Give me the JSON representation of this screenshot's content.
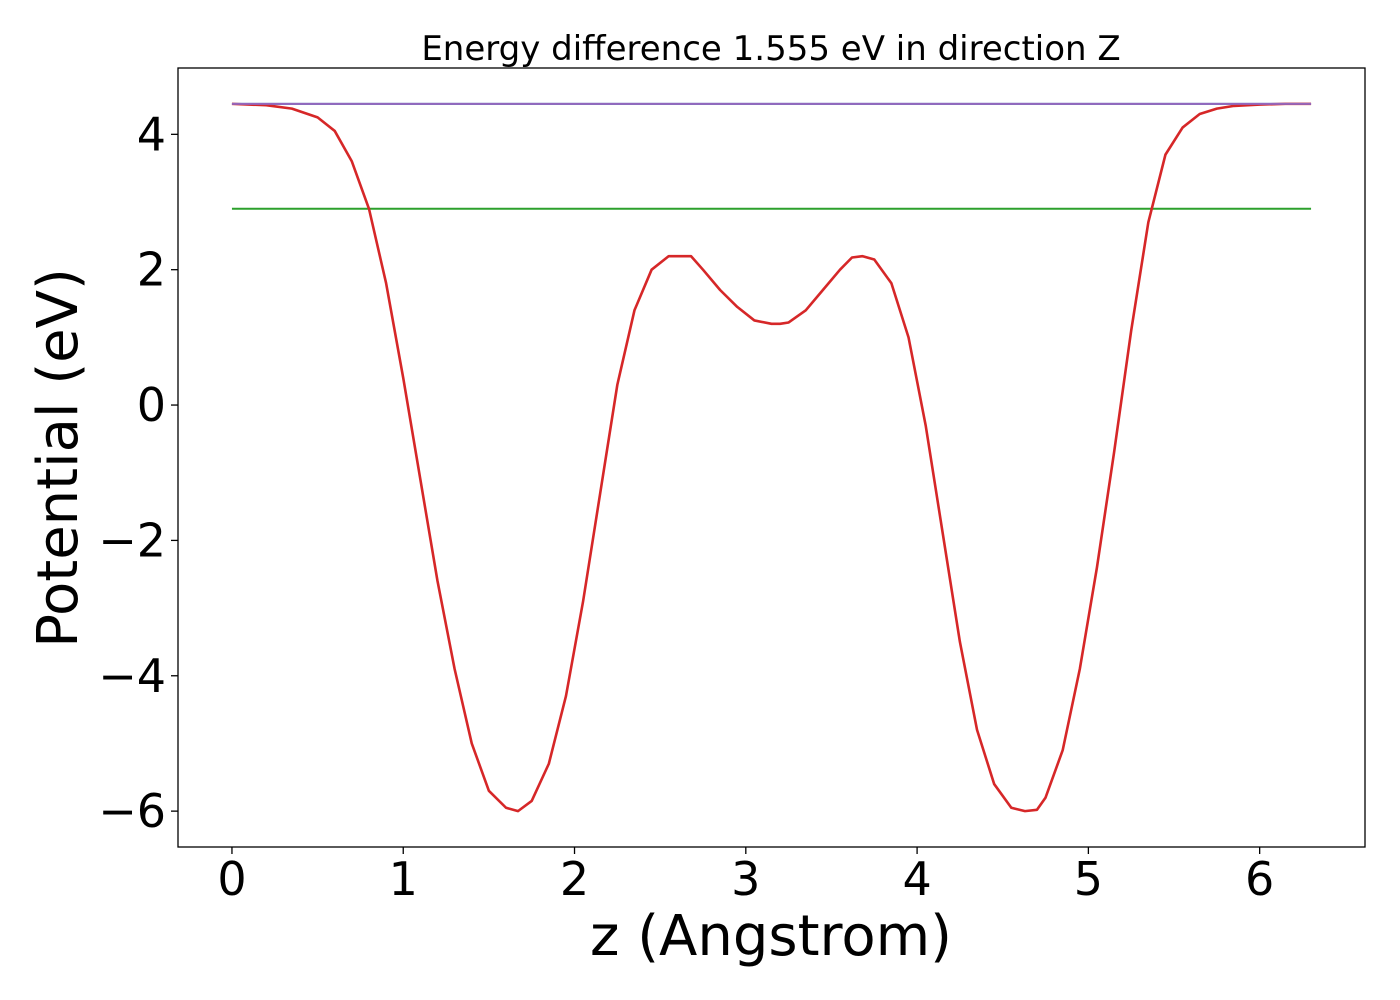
{
  "chart_data": {
    "type": "line",
    "title": "Energy difference 1.555 eV in direction Z",
    "xlabel": "z (Angstrom)",
    "ylabel": "Potential (eV)",
    "xlim": [
      -0.315,
      6.615
    ],
    "ylim": [
      -6.53,
      4.98
    ],
    "grid": false,
    "legend": "none",
    "x_ticks": [
      0,
      1,
      2,
      3,
      4,
      5,
      6
    ],
    "x_tick_labels": [
      "0",
      "1",
      "2",
      "3",
      "4",
      "5",
      "6"
    ],
    "y_ticks": [
      -6,
      -4,
      -2,
      0,
      2,
      4
    ],
    "y_tick_labels": [
      "−6",
      "−4",
      "−2",
      "0",
      "2",
      "4"
    ],
    "series": [
      {
        "color": "#1f77b4",
        "x": [
          0,
          6.3
        ],
        "y": [
          4.45,
          4.45
        ]
      },
      {
        "color": "#2ca02c",
        "x": [
          0,
          6.3
        ],
        "y": [
          2.9,
          2.9
        ]
      },
      {
        "color": "#d62728",
        "x": [
          0,
          0.2,
          0.35,
          0.5,
          0.6,
          0.7,
          0.8,
          0.9,
          1.0,
          1.1,
          1.2,
          1.3,
          1.4,
          1.5,
          1.6,
          1.67,
          1.75,
          1.85,
          1.95,
          2.05,
          2.15,
          2.25,
          2.35,
          2.45,
          2.55,
          2.62,
          2.68,
          2.75,
          2.85,
          2.95,
          3.05,
          3.15,
          3.2,
          3.25,
          3.35,
          3.45,
          3.55,
          3.62,
          3.68,
          3.75,
          3.85,
          3.95,
          4.05,
          4.15,
          4.25,
          4.35,
          4.45,
          4.55,
          4.63,
          4.7,
          4.75,
          4.85,
          4.95,
          5.05,
          5.15,
          5.25,
          5.35,
          5.45,
          5.55,
          5.65,
          5.75,
          5.85,
          6.0,
          6.15,
          6.3
        ],
        "y": [
          4.45,
          4.43,
          4.38,
          4.25,
          4.05,
          3.6,
          2.9,
          1.8,
          0.4,
          -1.1,
          -2.6,
          -3.9,
          -5.0,
          -5.7,
          -5.95,
          -6.0,
          -5.85,
          -5.3,
          -4.3,
          -2.9,
          -1.3,
          0.3,
          1.4,
          2.0,
          2.2,
          2.2,
          2.2,
          2.0,
          1.7,
          1.45,
          1.25,
          1.2,
          1.2,
          1.22,
          1.4,
          1.7,
          2.0,
          2.18,
          2.2,
          2.15,
          1.8,
          1.0,
          -0.3,
          -1.9,
          -3.5,
          -4.8,
          -5.6,
          -5.95,
          -6.0,
          -5.98,
          -5.8,
          -5.1,
          -3.9,
          -2.4,
          -0.7,
          1.1,
          2.7,
          3.7,
          4.1,
          4.3,
          4.38,
          4.42,
          4.44,
          4.45,
          4.45
        ]
      },
      {
        "color": "#9467bd",
        "x": [
          0,
          0.2,
          6.1,
          6.3
        ],
        "y": [
          4.45,
          4.45,
          4.45,
          4.45
        ]
      }
    ]
  }
}
